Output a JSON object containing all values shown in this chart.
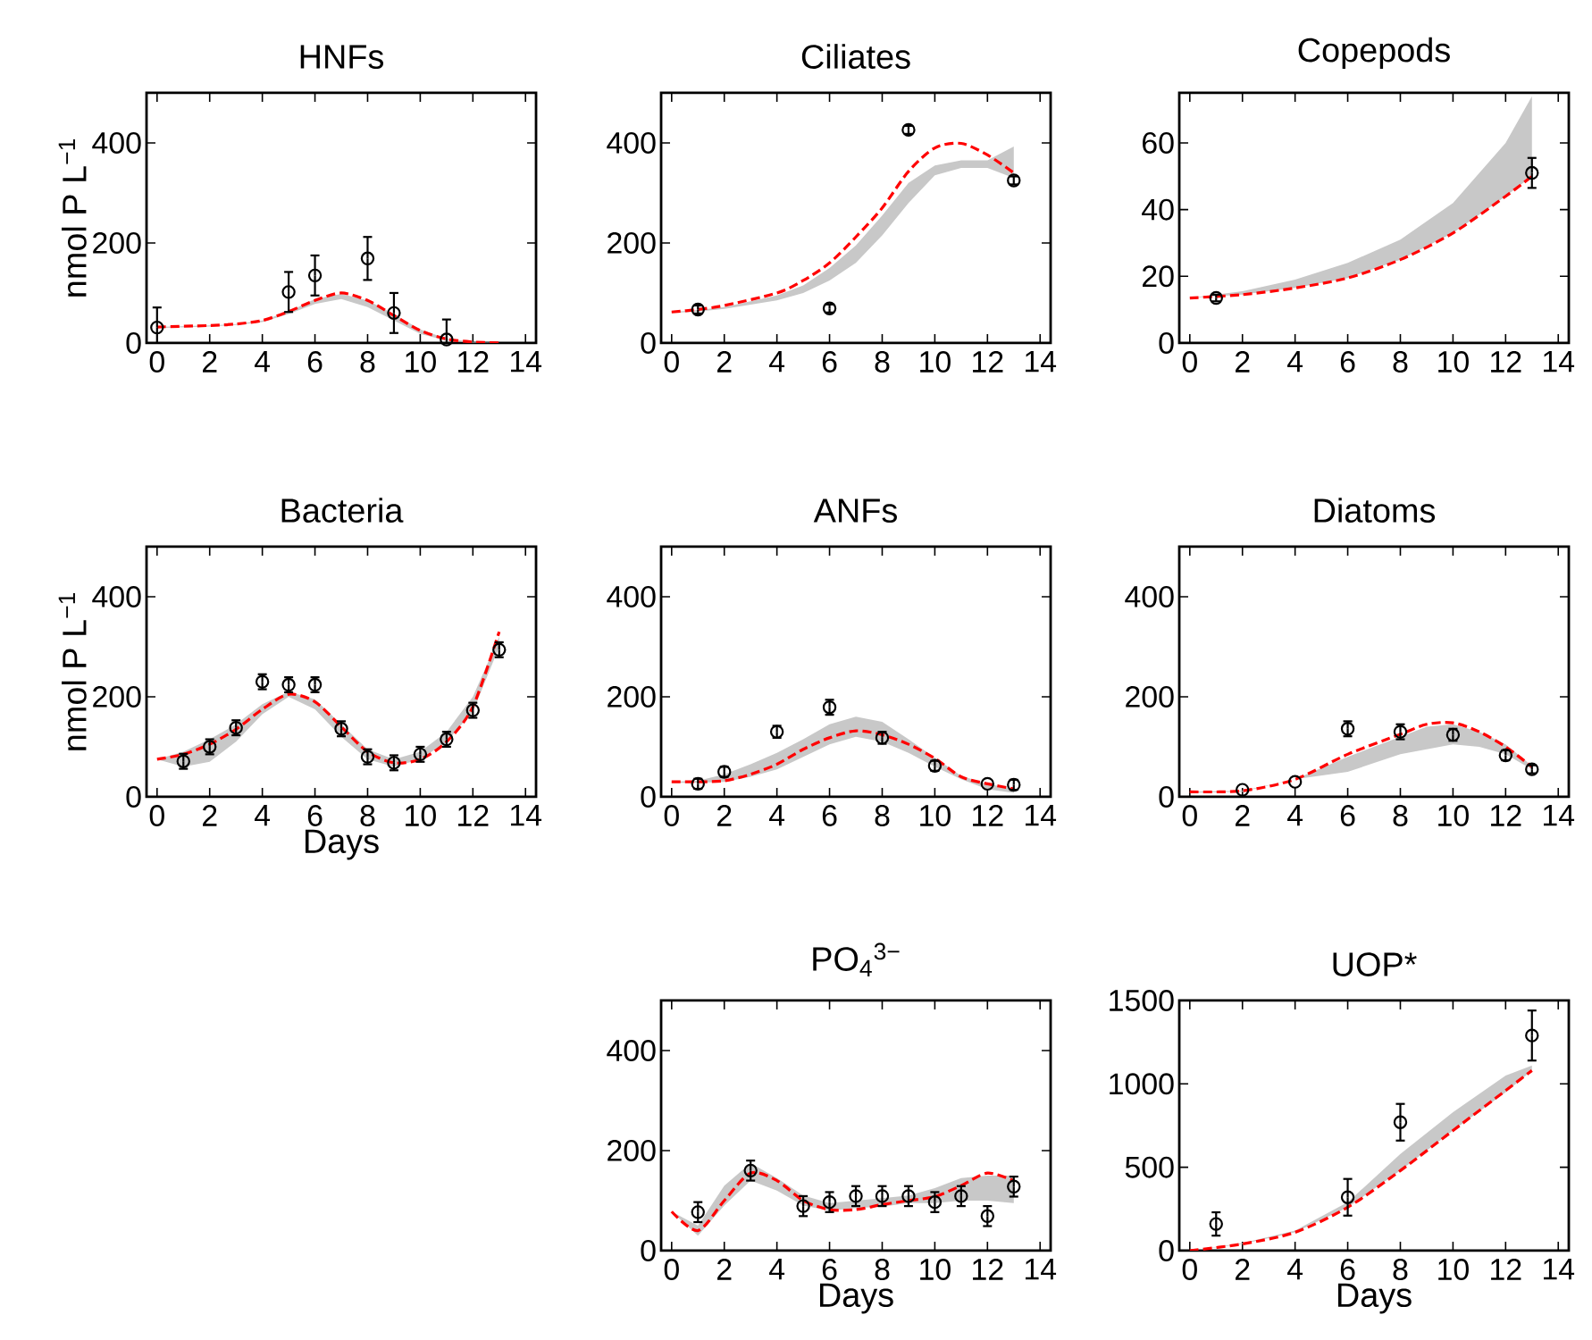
{
  "chart_data": [
    {
      "type": "line",
      "title": "HNFs",
      "ylabel": "nmol P L$^{−1}$",
      "xlim": [
        -0.4,
        14.4
      ],
      "xticks": [
        0,
        2,
        4,
        6,
        8,
        10,
        12,
        14
      ],
      "ylim": [
        0,
        500
      ],
      "yticks": [
        0,
        200,
        400
      ],
      "series": [
        {
          "type": "line",
          "x": [
            0,
            2,
            3,
            4,
            5,
            6,
            7,
            8,
            9,
            10,
            11,
            12,
            13
          ],
          "values": [
            32,
            35,
            38,
            45,
            63,
            85,
            100,
            85,
            55,
            25,
            8,
            2,
            0
          ],
          "lower": [
            30,
            33,
            36,
            42,
            58,
            78,
            88,
            72,
            45,
            18,
            5,
            1,
            0
          ],
          "upper": [
            32,
            35,
            38,
            45,
            63,
            88,
            98,
            85,
            58,
            27,
            9,
            2,
            0
          ],
          "color": "#ff0000",
          "line_style": "dashed",
          "marker": "none"
        },
        {
          "type": "scatter",
          "x": [
            0,
            5,
            6,
            8,
            9,
            11
          ],
          "values": [
            31,
            102,
            135,
            169,
            60,
            7
          ],
          "errors": [
            40,
            40,
            40,
            43,
            40,
            40
          ],
          "color": "#000000",
          "marker": "circle"
        }
      ]
    },
    {
      "type": "line",
      "title": "Ciliates",
      "xlim": [
        -0.4,
        14.4
      ],
      "xticks": [
        0,
        2,
        4,
        6,
        8,
        10,
        12,
        14
      ],
      "ylim": [
        0,
        500
      ],
      "yticks": [
        0,
        200,
        400
      ],
      "series": [
        {
          "type": "line",
          "x": [
            0,
            1,
            2,
            4,
            5,
            6,
            7,
            8,
            9,
            10,
            11,
            12,
            13
          ],
          "values": [
            62,
            67,
            75,
            100,
            125,
            160,
            212,
            270,
            343,
            390,
            399,
            376,
            340
          ],
          "lower": [
            60,
            63,
            68,
            85,
            100,
            125,
            160,
            215,
            280,
            335,
            350,
            350,
            330
          ],
          "upper": [
            62,
            66,
            72,
            95,
            115,
            150,
            195,
            255,
            320,
            355,
            365,
            365,
            393
          ],
          "color": "#ff0000",
          "line_style": "dashed",
          "marker": "none"
        },
        {
          "type": "scatter",
          "x": [
            1,
            6,
            9,
            13
          ],
          "values": [
            67,
            69,
            426,
            325
          ],
          "errors": [
            8,
            8,
            8,
            8
          ],
          "color": "#000000",
          "marker": "circle"
        }
      ]
    },
    {
      "type": "line",
      "title": "Copepods",
      "xlim": [
        -0.4,
        14.4
      ],
      "xticks": [
        0,
        2,
        4,
        6,
        8,
        10,
        12,
        14
      ],
      "ylim": [
        0,
        75
      ],
      "yticks": [
        0,
        20,
        40,
        60
      ],
      "series": [
        {
          "type": "line",
          "x": [
            0,
            2,
            4,
            6,
            8,
            10,
            12,
            13
          ],
          "values": [
            13.5,
            14.5,
            16.5,
            19.5,
            25,
            33,
            44,
            50
          ],
          "lower": [
            13.5,
            14.5,
            16.5,
            19.5,
            25,
            33,
            44,
            50
          ],
          "upper": [
            13.5,
            15.5,
            19,
            24,
            31,
            42,
            60,
            74
          ],
          "color": "#ff0000",
          "line_style": "dashed",
          "marker": "none"
        },
        {
          "type": "scatter",
          "x": [
            1,
            13
          ],
          "values": [
            13.5,
            51
          ],
          "errors": [
            1,
            4.5
          ],
          "color": "#000000",
          "marker": "circle"
        }
      ]
    },
    {
      "type": "line",
      "title": "Bacteria",
      "ylabel": "nmol P L$^{−1}$",
      "xlabel": "Days",
      "xlim": [
        -0.4,
        14.4
      ],
      "xticks": [
        0,
        2,
        4,
        6,
        8,
        10,
        12,
        14
      ],
      "ylim": [
        0,
        500
      ],
      "yticks": [
        0,
        200,
        400
      ],
      "series": [
        {
          "type": "line",
          "x": [
            0,
            1,
            2,
            3,
            4,
            5,
            6,
            7,
            8,
            9,
            10,
            11,
            12,
            13
          ],
          "values": [
            75,
            85,
            105,
            135,
            175,
            205,
            190,
            140,
            90,
            68,
            75,
            110,
            180,
            330
          ],
          "lower": [
            75,
            60,
            70,
            110,
            165,
            200,
            175,
            120,
            75,
            60,
            75,
            110,
            170,
            300
          ],
          "upper": [
            75,
            90,
            115,
            145,
            185,
            210,
            195,
            145,
            95,
            75,
            90,
            130,
            200,
            320
          ],
          "color": "#ff0000",
          "line_style": "dashed",
          "marker": "none"
        },
        {
          "type": "scatter",
          "x": [
            1,
            2,
            3,
            4,
            5,
            6,
            7,
            8,
            9,
            10,
            11,
            12,
            13
          ],
          "values": [
            71,
            100,
            138,
            230,
            224,
            224,
            136,
            80,
            68,
            85,
            115,
            173,
            294
          ],
          "errors": [
            15,
            15,
            15,
            15,
            15,
            15,
            15,
            15,
            15,
            15,
            15,
            15,
            15
          ],
          "color": "#000000",
          "marker": "circle"
        }
      ]
    },
    {
      "type": "line",
      "title": "ANFs",
      "xlim": [
        -0.4,
        14.4
      ],
      "xticks": [
        0,
        2,
        4,
        6,
        8,
        10,
        12,
        14
      ],
      "ylim": [
        0,
        500
      ],
      "yticks": [
        0,
        200,
        400
      ],
      "series": [
        {
          "type": "line",
          "x": [
            0,
            1,
            2,
            3,
            4,
            5,
            6,
            7,
            8,
            9,
            10,
            11,
            12,
            13
          ],
          "values": [
            30,
            30,
            32,
            45,
            65,
            95,
            118,
            132,
            124,
            105,
            77,
            40,
            26,
            16
          ],
          "lower": [
            28,
            28,
            30,
            40,
            55,
            80,
            105,
            120,
            110,
            88,
            60,
            35,
            15,
            8
          ],
          "upper": [
            30,
            32,
            45,
            65,
            88,
            115,
            145,
            160,
            150,
            115,
            78,
            42,
            26,
            16
          ],
          "color": "#ff0000",
          "line_style": "dashed",
          "marker": "none"
        },
        {
          "type": "scatter",
          "x": [
            1,
            2,
            4,
            6,
            8,
            10,
            12,
            13
          ],
          "values": [
            26,
            50,
            130,
            179,
            118,
            62,
            26,
            24
          ],
          "errors": [
            10,
            10,
            12,
            15,
            12,
            10,
            null,
            10
          ],
          "color": "#000000",
          "marker": "circle"
        }
      ]
    },
    {
      "type": "line",
      "title": "Diatoms",
      "xlim": [
        -0.4,
        14.4
      ],
      "xticks": [
        0,
        2,
        4,
        6,
        8,
        10,
        12,
        14
      ],
      "ylim": [
        0,
        500
      ],
      "yticks": [
        0,
        200,
        400
      ],
      "series": [
        {
          "type": "line",
          "x": [
            0,
            2,
            4,
            6,
            8,
            9,
            10,
            11,
            12,
            13
          ],
          "values": [
            10,
            12,
            35,
            85,
            125,
            145,
            148,
            130,
            100,
            60
          ],
          "lower": [
            8,
            10,
            35,
            50,
            85,
            95,
            105,
            100,
            85,
            55
          ],
          "upper": [
            10,
            12,
            35,
            80,
            120,
            140,
            145,
            130,
            105,
            62
          ],
          "color": "#ff0000",
          "line_style": "dashed",
          "marker": "none"
        },
        {
          "type": "scatter",
          "x": [
            2,
            4,
            6,
            8,
            10,
            12,
            13
          ],
          "values": [
            14,
            30,
            136,
            130,
            124,
            83,
            55
          ],
          "errors": [
            null,
            null,
            15,
            15,
            12,
            10,
            8
          ],
          "color": "#000000",
          "marker": "circle"
        }
      ]
    },
    {
      "type": "line",
      "title": "PO$_{4}$$^{3−}$",
      "xlabel": "Days",
      "xlim": [
        -0.4,
        14.4
      ],
      "xticks": [
        0,
        2,
        4,
        6,
        8,
        10,
        12,
        14
      ],
      "ylim": [
        0,
        500
      ],
      "yticks": [
        0,
        200,
        400
      ],
      "series": [
        {
          "type": "line",
          "x": [
            0,
            1,
            2,
            3,
            4,
            5,
            6,
            7,
            8,
            9,
            10,
            11,
            12,
            13
          ],
          "values": [
            78,
            40,
            100,
            155,
            140,
            100,
            82,
            82,
            92,
            100,
            108,
            130,
            155,
            140
          ],
          "lower": [
            78,
            30,
            90,
            140,
            120,
            90,
            80,
            85,
            88,
            95,
            95,
            100,
            100,
            95
          ],
          "upper": [
            78,
            50,
            130,
            175,
            145,
            110,
            95,
            100,
            105,
            110,
            125,
            145,
            150,
            150
          ],
          "color": "#ff0000",
          "line_style": "dashed",
          "marker": "none"
        },
        {
          "type": "scatter",
          "x": [
            1,
            3,
            5,
            6,
            7,
            8,
            9,
            10,
            11,
            12,
            13
          ],
          "values": [
            77,
            160,
            89,
            97,
            109,
            109,
            109,
            97,
            109,
            69,
            128
          ],
          "errors": [
            20,
            20,
            20,
            20,
            20,
            20,
            20,
            20,
            20,
            20,
            20
          ],
          "color": "#000000",
          "marker": "circle"
        }
      ]
    },
    {
      "type": "line",
      "title": "UOP*",
      "xlabel": "Days",
      "xlim": [
        -0.4,
        14.4
      ],
      "xticks": [
        0,
        2,
        4,
        6,
        8,
        10,
        12,
        14
      ],
      "ylim": [
        0,
        1500
      ],
      "yticks": [
        0,
        500,
        1000,
        1500
      ],
      "series": [
        {
          "type": "line",
          "x": [
            0,
            2,
            4,
            6,
            8,
            10,
            12,
            13
          ],
          "values": [
            0,
            40,
            110,
            260,
            480,
            720,
            960,
            1080
          ],
          "lower": [
            0,
            40,
            110,
            260,
            480,
            720,
            950,
            1080
          ],
          "upper": [
            0,
            45,
            120,
            290,
            580,
            830,
            1050,
            1110
          ],
          "color": "#ff0000",
          "line_style": "dashed",
          "marker": "none"
        },
        {
          "type": "scatter",
          "x": [
            1,
            6,
            8,
            13
          ],
          "values": [
            160,
            320,
            770,
            1290
          ],
          "errors": [
            70,
            110,
            110,
            150
          ],
          "color": "#000000",
          "marker": "circle"
        }
      ]
    }
  ]
}
